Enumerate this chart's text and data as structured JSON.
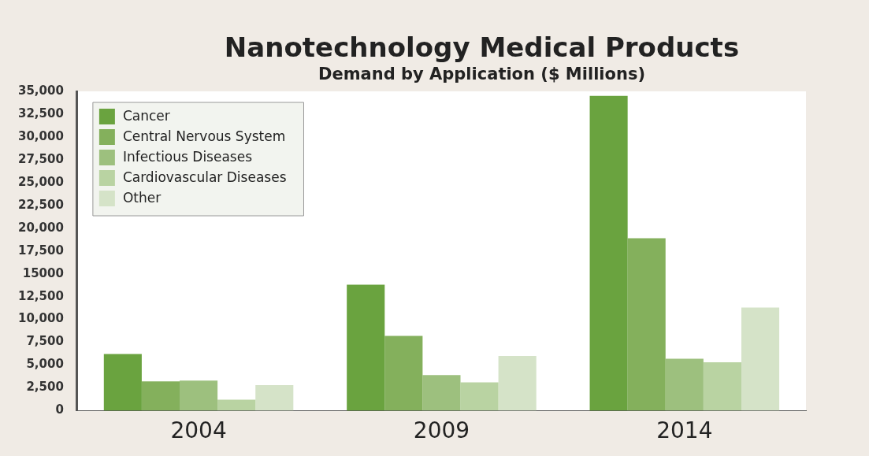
{
  "chart_data": {
    "type": "bar",
    "title": "Nanotechnology Medical Products",
    "subtitle": "Demand by Application ($ Millions)",
    "categories": [
      "2004",
      "2009",
      "2014"
    ],
    "series": [
      {
        "name": "Cancer",
        "color": "#6aa33f",
        "values": [
          6200,
          13800,
          34500
        ]
      },
      {
        "name": "Central Nervous System",
        "color": "#84b05c",
        "values": [
          3200,
          8200,
          18900
        ]
      },
      {
        "name": "Infectious Diseases",
        "color": "#9dc07e",
        "values": [
          3300,
          3900,
          5700
        ]
      },
      {
        "name": "Cardiovascular Diseases",
        "color": "#b9d3a2",
        "values": [
          1200,
          3100,
          5300
        ]
      },
      {
        "name": "Other",
        "color": "#d5e3c8",
        "values": [
          2800,
          6000,
          11300
        ]
      }
    ],
    "ylim": [
      0,
      35000
    ],
    "yticks": [
      0,
      {
        "value": 2500,
        "label": "2,500"
      },
      {
        "value": 5000,
        "label": "5,000"
      },
      {
        "value": 7500,
        "label": "7,500"
      },
      {
        "value": 10000,
        "label": "10,000"
      },
      {
        "value": 12500,
        "label": "12,500"
      },
      15000,
      {
        "value": 17500,
        "label": "17,500"
      },
      {
        "value": 20000,
        "label": "20,000"
      },
      {
        "value": 22500,
        "label": "22,500"
      },
      {
        "value": 25000,
        "label": "25,000"
      },
      {
        "value": 27500,
        "label": "27,500"
      },
      {
        "value": 30000,
        "label": "30,000"
      },
      {
        "value": 32500,
        "label": "32,500"
      },
      {
        "value": 35000,
        "label": "35,000"
      }
    ],
    "grid": false,
    "legend": "top left"
  }
}
